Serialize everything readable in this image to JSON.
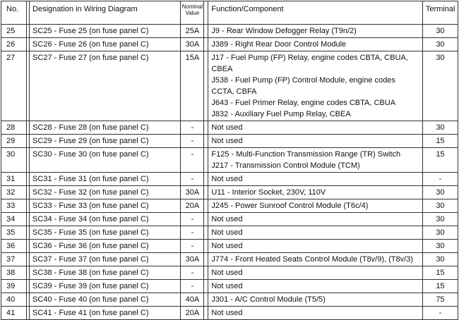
{
  "table": {
    "header": {
      "no": "No.",
      "designation": "Designation in Wiring Diagram",
      "nominal_value": "Nominal Value",
      "function": "Function/Component",
      "terminal": "Terminal"
    },
    "rows": [
      [
        "25",
        "SC25 - Fuse 25 (on fuse panel C)",
        "25A",
        [
          "J9 - Rear Window Defogger Relay (T9n/2)"
        ],
        "30"
      ],
      [
        "26",
        "SC26 - Fuse 26 (on fuse panel C)",
        "30A",
        [
          "J389 - Right Rear Door Control Module"
        ],
        "30"
      ],
      [
        "27",
        "SC27 - Fuse 27 (on fuse panel C)",
        "15A",
        [
          "J17 - Fuel Pump (FP) Relay, engine codes CBTA, CBUA, CBEA",
          "J538 - Fuel Pump (FP) Control Module, engine codes CCTA, CBFA",
          "J643 - Fuel Primer Relay, engine codes CBTA, CBUA",
          "J832 - Auxiliary Fuel Pump Relay, CBEA"
        ],
        "30"
      ],
      [
        "28",
        "SC28 - Fuse 28 (on fuse panel C)",
        "-",
        [
          "Not used"
        ],
        "30"
      ],
      [
        "29",
        "SC29 - Fuse 29 (on fuse panel C)",
        "-",
        [
          "Not used"
        ],
        "15"
      ],
      [
        "30",
        "SC30 - Fuse 30 (on fuse panel C)",
        "-",
        [
          "F125 - Multi-Function Transmission Range (TR) Switch",
          "J217 - Transmission Control Module (TCM)"
        ],
        "15"
      ],
      [
        "31",
        "SC31 - Fuse 31 (on fuse panel C)",
        "-",
        [
          "Not used"
        ],
        "-"
      ],
      [
        "32",
        "SC32 - Fuse 32 (on fuse panel C)",
        "30A",
        [
          "U11 - Interior Socket, 230V, 110V"
        ],
        "30"
      ],
      [
        "33",
        "SC33 - Fuse 33 (on fuse panel C)",
        "20A",
        [
          "J245 - Power Sunroof Control Module (T6c/4)"
        ],
        "30"
      ],
      [
        "34",
        "SC34 - Fuse 34 (on fuse panel C)",
        "-",
        [
          "Not used"
        ],
        "30"
      ],
      [
        "35",
        "SC35 - Fuse 35 (on fuse panel C)",
        "-",
        [
          "Not used"
        ],
        "30"
      ],
      [
        "36",
        "SC36 - Fuse 36 (on fuse panel C)",
        "-",
        [
          "Not used"
        ],
        "30"
      ],
      [
        "37",
        "SC37 - Fuse 37 (on fuse panel C)",
        "30A",
        [
          "J774 - Front Heated Seats Control Module (T8v/9), (T8v/3)"
        ],
        "30"
      ],
      [
        "38",
        "SC38 - Fuse 38 (on fuse panel C)",
        "-",
        [
          "Not used"
        ],
        "15"
      ],
      [
        "39",
        "SC39 - Fuse 39 (on fuse panel C)",
        "-",
        [
          "Not used"
        ],
        "15"
      ],
      [
        "40",
        "SC40 - Fuse 40 (on fuse panel C)",
        "40A",
        [
          "J301 - A/C Control Module (T5/5)"
        ],
        "75"
      ],
      [
        "41",
        "SC41 - Fuse 41 (on fuse panel C)",
        "20A",
        [
          "Not used"
        ],
        "-"
      ]
    ]
  }
}
